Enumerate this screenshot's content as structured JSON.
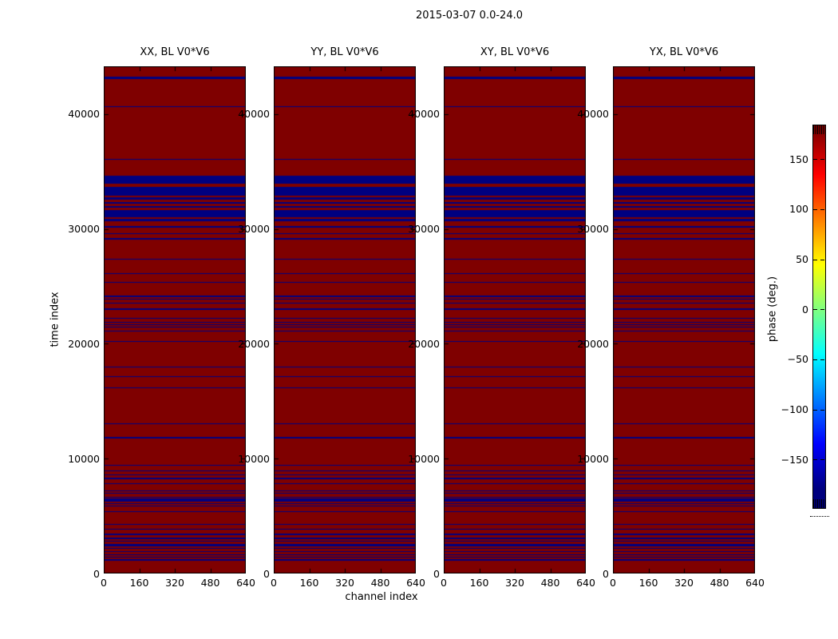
{
  "chart_data": {
    "type": "heatmap",
    "title": "2015-03-07 0.0-24.0",
    "xlabel": "channel index",
    "ylabel": "time index",
    "panels": [
      {
        "title": "XX, BL V0*V6"
      },
      {
        "title": "YY, BL V0*V6"
      },
      {
        "title": "XY, BL V0*V6"
      },
      {
        "title": "YX, BL V0*V6"
      }
    ],
    "xlim": [
      0,
      640
    ],
    "ylim": [
      0,
      44170
    ],
    "x_ticks": [
      0,
      160,
      320,
      480,
      640
    ],
    "y_ticks": [
      0,
      10000,
      20000,
      30000,
      40000
    ],
    "grid": false,
    "colors": {
      "background": "#7f0000",
      "stripe": "#000080"
    },
    "values": {
      "background_phase_deg": 180,
      "stripe_phase_deg": -180
    },
    "colorbar": {
      "label": "phase (deg.)",
      "colormap": "jet",
      "range": [
        -180,
        180
      ],
      "ticks": [
        150,
        100,
        50,
        0,
        -50,
        -100,
        -150
      ],
      "tick_labels": [
        "150",
        "100",
        "50",
        "0",
        "−50",
        "−100",
        "−150"
      ]
    },
    "stripes_time_ranges": [
      [
        43080,
        43250
      ],
      [
        40600,
        40680
      ],
      [
        36000,
        36090
      ],
      [
        33920,
        34615
      ],
      [
        32930,
        33650
      ],
      [
        32580,
        32740
      ],
      [
        32210,
        32370
      ],
      [
        31840,
        32030
      ],
      [
        30990,
        31680
      ],
      [
        30690,
        30850
      ],
      [
        30150,
        30290
      ],
      [
        29560,
        29640
      ],
      [
        29080,
        29220
      ],
      [
        27350,
        27430
      ],
      [
        26060,
        26140
      ],
      [
        25340,
        25410
      ],
      [
        24100,
        24180
      ],
      [
        23860,
        23940
      ],
      [
        23530,
        23610
      ],
      [
        22980,
        23060
      ],
      [
        22190,
        22270
      ],
      [
        21870,
        21940
      ],
      [
        21620,
        21700
      ],
      [
        21410,
        21490
      ],
      [
        21050,
        21130
      ],
      [
        20170,
        20250
      ],
      [
        17930,
        18010
      ],
      [
        17110,
        17190
      ],
      [
        16140,
        16220
      ],
      [
        13020,
        13100
      ],
      [
        11780,
        11860
      ],
      [
        9390,
        9470
      ],
      [
        8880,
        8960
      ],
      [
        8560,
        8640
      ],
      [
        8240,
        8320
      ],
      [
        7760,
        7840
      ],
      [
        7180,
        7260
      ],
      [
        6940,
        7020
      ],
      [
        6620,
        6700
      ],
      [
        6240,
        6520
      ],
      [
        6060,
        6140
      ],
      [
        5810,
        5890
      ],
      [
        5350,
        5430
      ],
      [
        4260,
        4340
      ],
      [
        3840,
        3920
      ],
      [
        3370,
        3450
      ],
      [
        3020,
        3100
      ],
      [
        2760,
        2840
      ],
      [
        2360,
        2590
      ],
      [
        2160,
        2240
      ],
      [
        1860,
        1940
      ],
      [
        1620,
        1700
      ],
      [
        1370,
        1450
      ],
      [
        1140,
        1220
      ]
    ]
  }
}
